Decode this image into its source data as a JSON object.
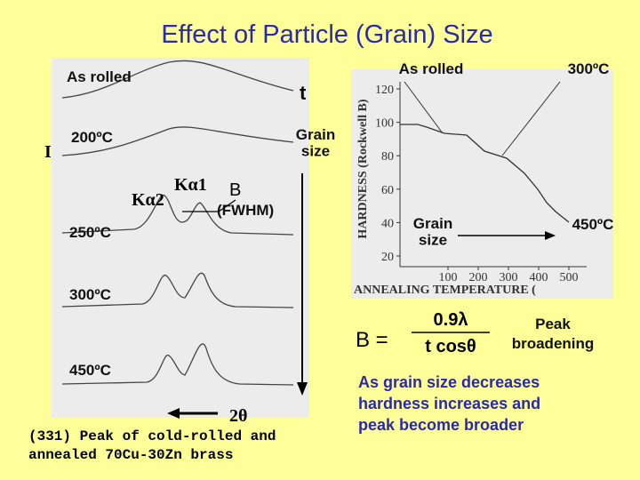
{
  "title": "Effect of Particle (Grain) Size",
  "xrd_figure": {
    "labels": {
      "as_rolled": "As rolled",
      "t200": "200ºC",
      "t250": "250ºC",
      "t300": "300ºC",
      "t450": "450ºC",
      "intensity": "I",
      "ka1": "Kα1",
      "ka2": "Kα2",
      "b": "B",
      "fwhm": "(FWHM)",
      "t": "t",
      "grain_size": "Grain size",
      "two_theta": "2θ"
    },
    "caption": [
      "(331) Peak of cold-rolled and",
      "annealed 70Cu-30Zn brass"
    ]
  },
  "hardness_figure": {
    "labels": {
      "as_rolled": "As rolled",
      "t300": "300ºC",
      "grain_size": "Grain size",
      "t450": "450ºC"
    },
    "ylabel": "HARDNESS (Rockwell B)",
    "xlabel": "ANNEALING TEMPERATURE (",
    "yticks": [
      120,
      100,
      80,
      60,
      40,
      20
    ],
    "xticks": [
      100,
      200,
      300,
      400,
      500
    ]
  },
  "formula": {
    "lhs": "B =",
    "numerator": "0.9λ",
    "denominator": "t cosθ"
  },
  "peak_broadening": [
    "Peak",
    "broadening"
  ],
  "conclusion": [
    "As grain size decreases",
    "hardness increases and",
    "peak become broader"
  ]
}
